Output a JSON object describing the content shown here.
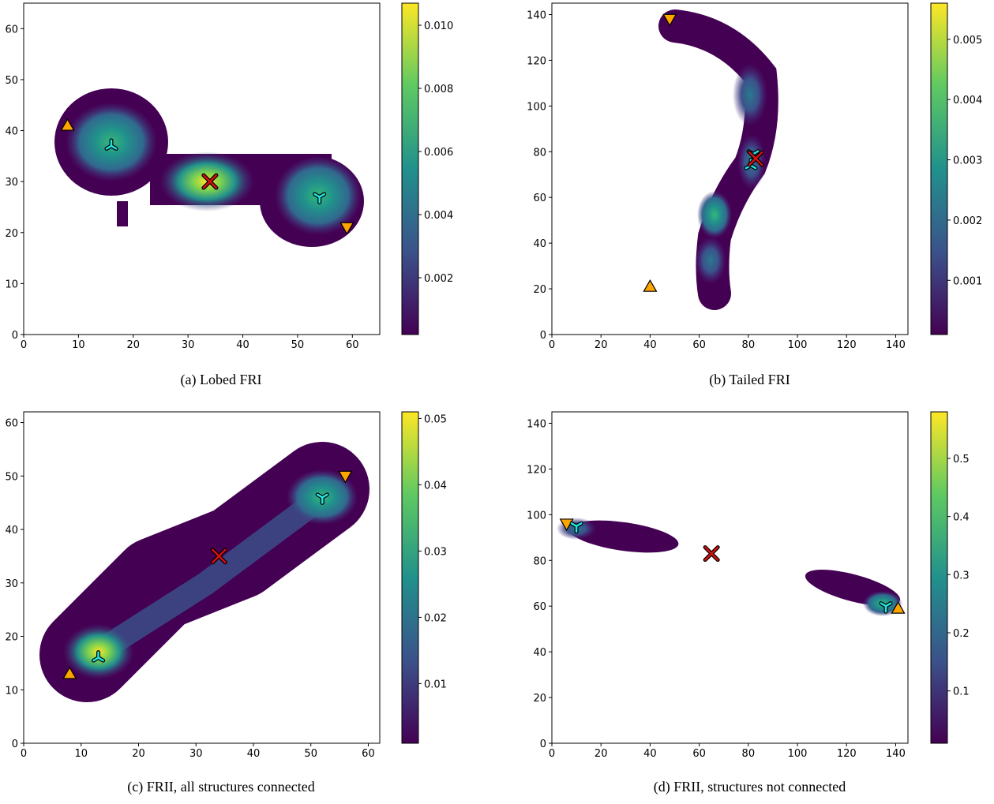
{
  "chart_data": [
    {
      "type": "heatmap",
      "caption": "(a) Lobed FRI",
      "xlim": [
        0,
        65
      ],
      "ylim": [
        0,
        65
      ],
      "xticks": [
        0,
        10,
        20,
        30,
        40,
        50,
        60
      ],
      "yticks": [
        0,
        10,
        20,
        30,
        40,
        50,
        60
      ],
      "colorbar": {
        "lim": [
          0.0002,
          0.0107
        ],
        "ticks": [
          0.002,
          0.004,
          0.006,
          0.008,
          {
            "value": 0.01,
            "label": "0.010"
          }
        ]
      },
      "markers": [
        {
          "marker": "triangle-up",
          "color": "#ffa500",
          "x": 8,
          "y": 41
        },
        {
          "marker": "triangle-down",
          "color": "#ffa500",
          "x": 59,
          "y": 21
        },
        {
          "marker": "tri-up",
          "color": "#22e6e6",
          "x": 16,
          "y": 37
        },
        {
          "marker": "tri-down",
          "color": "#22e6e6",
          "x": 54,
          "y": 27
        },
        {
          "marker": "x",
          "color": "#d81010",
          "x": 34,
          "y": 30
        }
      ]
    },
    {
      "type": "heatmap",
      "caption": "(b) Tailed FRI",
      "xlim": [
        0,
        145
      ],
      "ylim": [
        0,
        145
      ],
      "xticks": [
        0,
        20,
        40,
        60,
        80,
        100,
        120,
        140
      ],
      "yticks": [
        0,
        20,
        40,
        60,
        80,
        100,
        120,
        140
      ],
      "colorbar": {
        "lim": [
          0.0001,
          0.0056
        ],
        "ticks": [
          0.001,
          0.002,
          0.003,
          0.004,
          0.005
        ]
      },
      "markers": [
        {
          "marker": "triangle-up",
          "color": "#ffa500",
          "x": 40,
          "y": 21
        },
        {
          "marker": "triangle-down",
          "color": "#ffa500",
          "x": 48,
          "y": 138
        },
        {
          "marker": "tri-down",
          "color": "#22e6e6",
          "x": 82,
          "y": 79
        },
        {
          "marker": "tri-up",
          "color": "#22e6e6",
          "x": 81,
          "y": 74
        },
        {
          "marker": "x",
          "color": "#d81010",
          "x": 83,
          "y": 77
        }
      ]
    },
    {
      "type": "heatmap",
      "caption": "(c) FRII, all structures connected",
      "xlim": [
        0,
        62
      ],
      "ylim": [
        0,
        62
      ],
      "xticks": [
        0,
        10,
        20,
        30,
        40,
        50,
        60
      ],
      "yticks": [
        0,
        10,
        20,
        30,
        40,
        50,
        60
      ],
      "colorbar": {
        "lim": [
          0.001,
          0.051
        ],
        "ticks": [
          0.01,
          0.02,
          0.03,
          0.04,
          0.05
        ]
      },
      "markers": [
        {
          "marker": "triangle-up",
          "color": "#ffa500",
          "x": 8,
          "y": 13
        },
        {
          "marker": "triangle-down",
          "color": "#ffa500",
          "x": 56,
          "y": 50
        },
        {
          "marker": "tri-up",
          "color": "#22e6e6",
          "x": 13,
          "y": 16
        },
        {
          "marker": "tri-down",
          "color": "#22e6e6",
          "x": 52,
          "y": 46
        },
        {
          "marker": "x",
          "color": "#d81010",
          "x": 34,
          "y": 35
        }
      ]
    },
    {
      "type": "heatmap",
      "caption": "(d) FRII, structures not connected",
      "xlim": [
        0,
        145
      ],
      "ylim": [
        0,
        145
      ],
      "xticks": [
        0,
        20,
        40,
        60,
        80,
        100,
        120,
        140
      ],
      "yticks": [
        0,
        20,
        40,
        60,
        80,
        100,
        120,
        140
      ],
      "colorbar": {
        "lim": [
          0.01,
          0.58
        ],
        "ticks": [
          0.1,
          0.2,
          0.3,
          0.4,
          0.5
        ]
      },
      "markers": [
        {
          "marker": "triangle-down",
          "color": "#ffa500",
          "x": 6,
          "y": 96
        },
        {
          "marker": "tri-down",
          "color": "#22e6e6",
          "x": 10,
          "y": 95
        },
        {
          "marker": "tri-down",
          "color": "#22e6e6",
          "x": 136,
          "y": 60
        },
        {
          "marker": "triangle-up",
          "color": "#ffa500",
          "x": 141,
          "y": 59
        },
        {
          "marker": "x",
          "color": "#d81010",
          "x": 65,
          "y": 83
        }
      ]
    }
  ]
}
